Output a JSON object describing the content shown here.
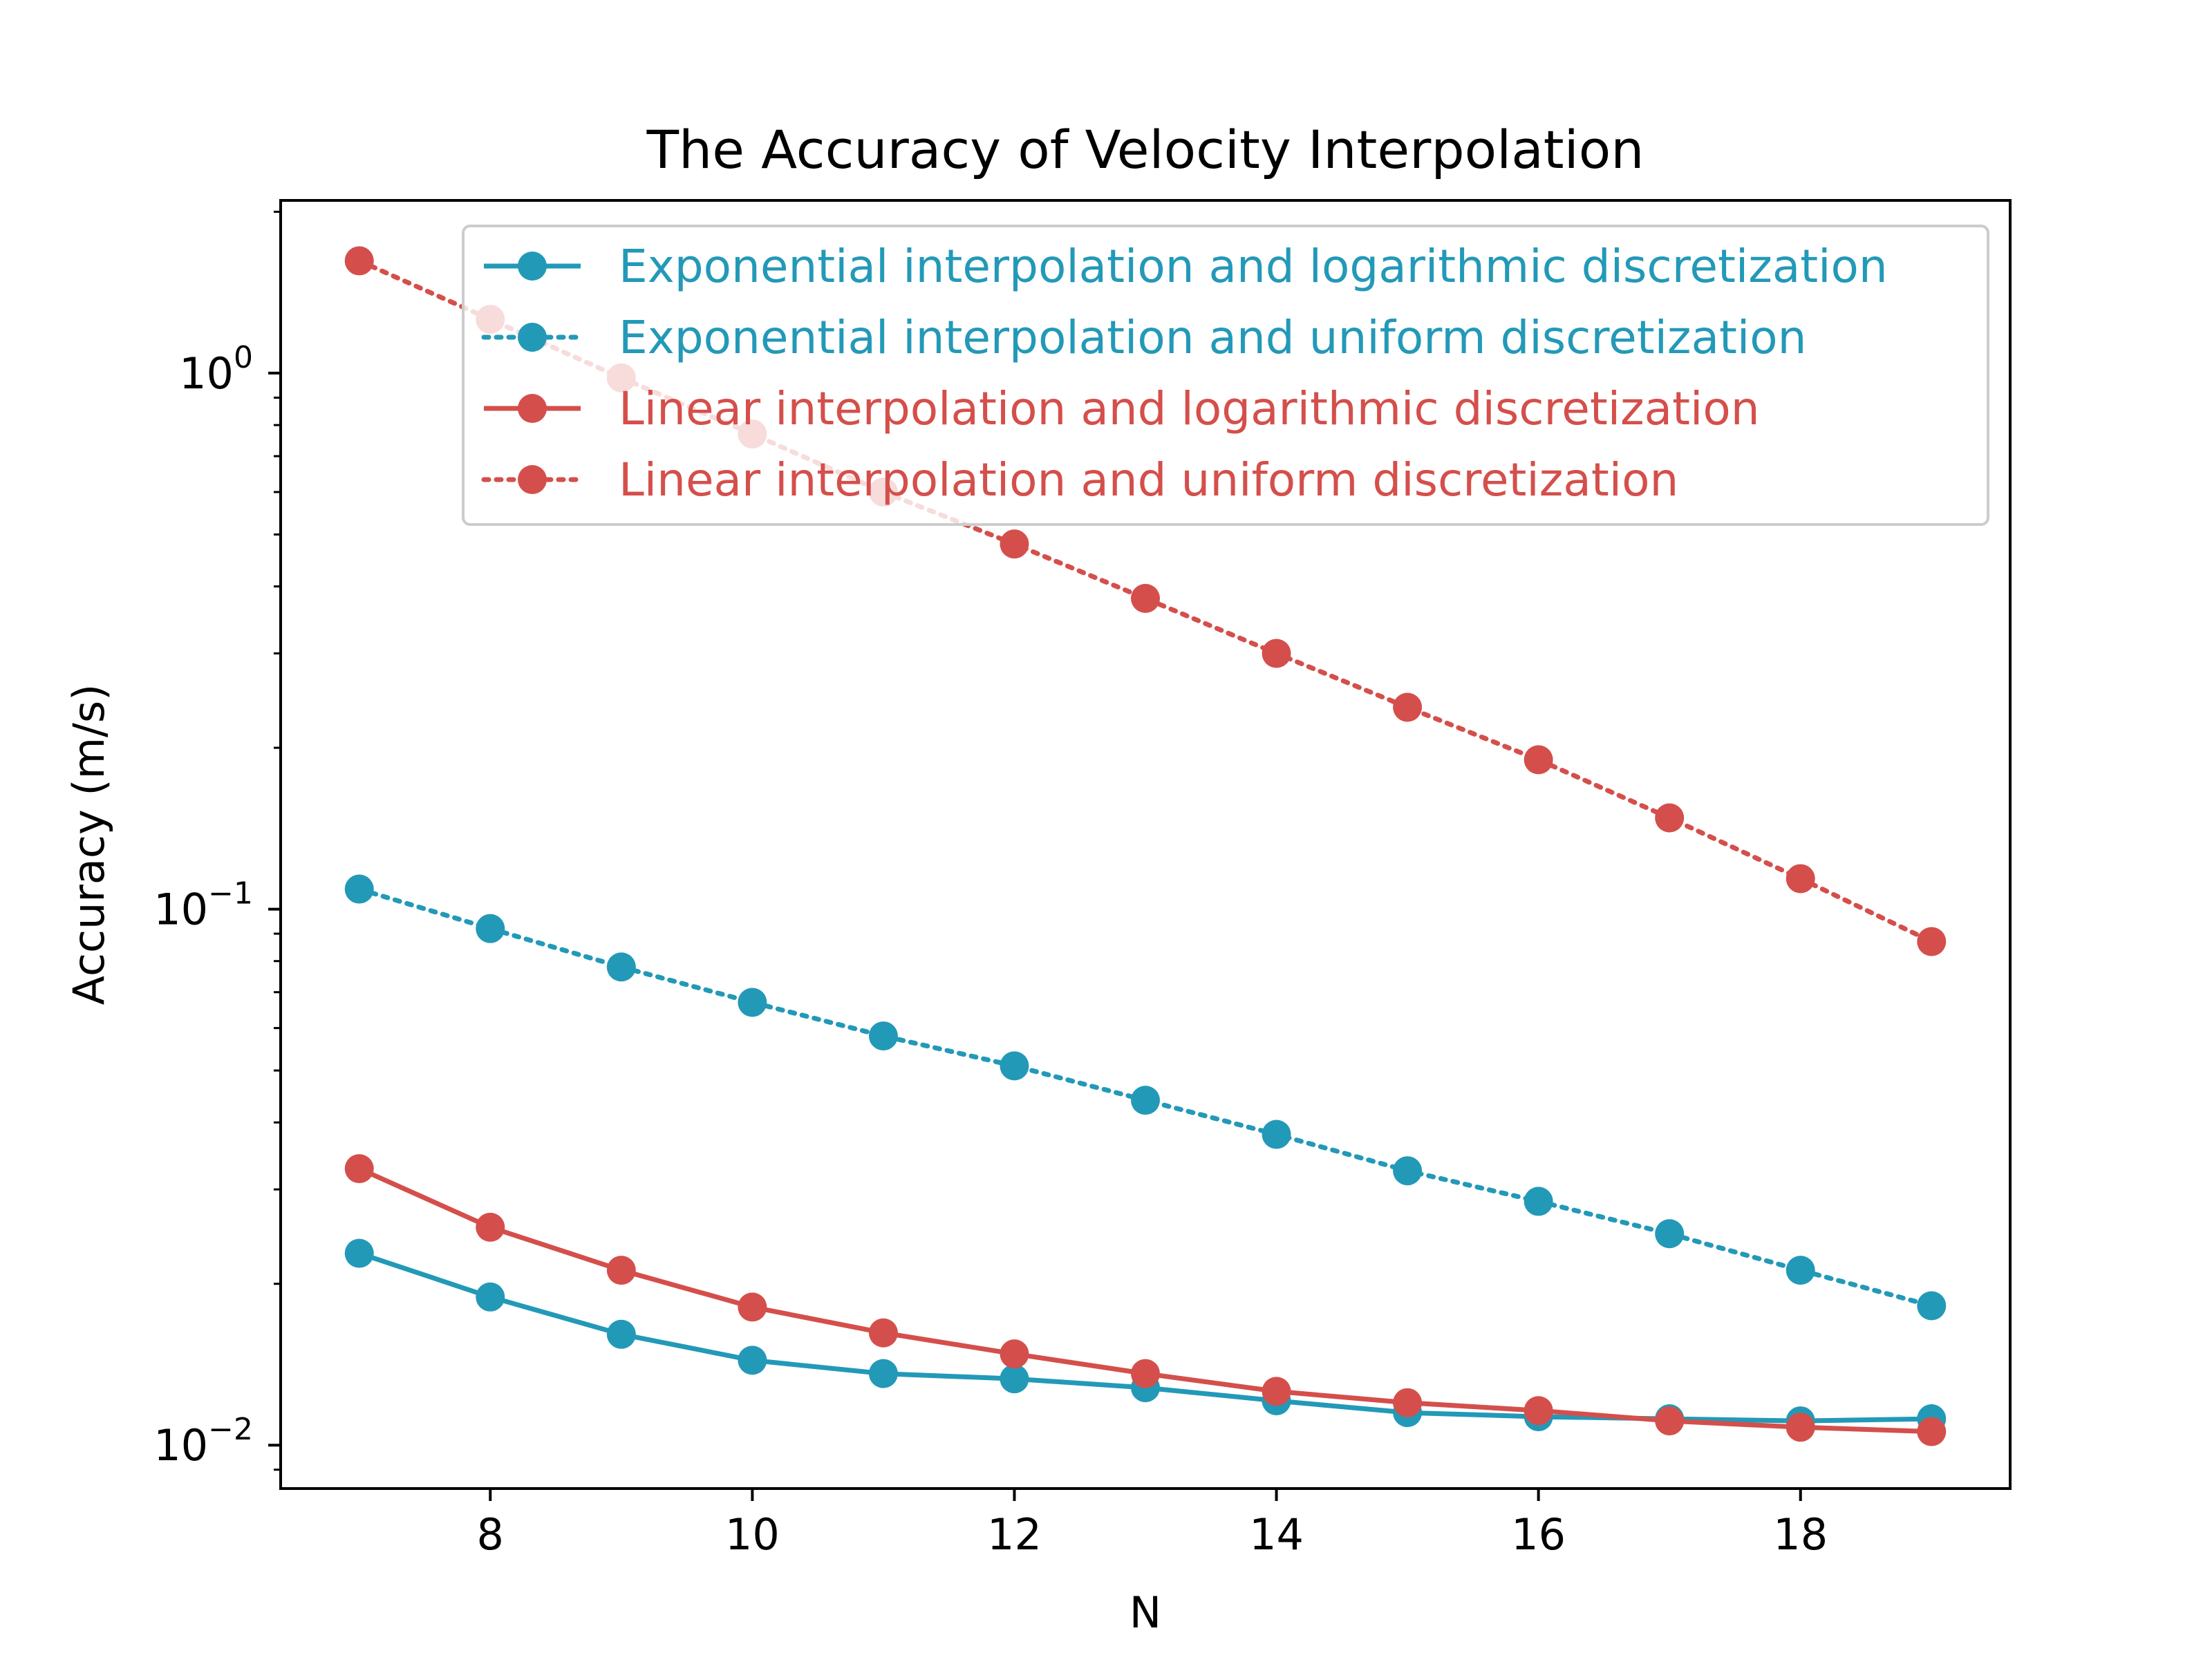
{
  "chart_data": {
    "type": "line",
    "title": "The Accuracy of Velocity Interpolation",
    "xlabel": "N",
    "ylabel": "Accuracy (m/s)",
    "yscale": "log",
    "xlim": [
      6.4,
      19.6
    ],
    "ylim": [
      0.0083,
      2.1
    ],
    "x_ticks": [
      8,
      10,
      12,
      14,
      16,
      18
    ],
    "x_tick_labels": [
      "8",
      "10",
      "12",
      "14",
      "16",
      "18"
    ],
    "y_major_ticks": [
      1,
      0.1,
      0.01
    ],
    "y_tick_labels": [
      {
        "base": "10",
        "exp": "0"
      },
      {
        "base": "10",
        "exp": "−1"
      },
      {
        "base": "10",
        "exp": "−2"
      }
    ],
    "x": [
      7,
      8,
      9,
      10,
      11,
      12,
      13,
      14,
      15,
      16,
      17,
      18,
      19
    ],
    "legend_position": "top-right",
    "series": [
      {
        "name": "Exponential interpolation and logarithmic discretization",
        "color": "#2399b8",
        "style": "solid",
        "values": [
          0.0228,
          0.0189,
          0.0161,
          0.0144,
          0.0136,
          0.0133,
          0.0128,
          0.0121,
          0.0115,
          0.0113,
          0.0112,
          0.0111,
          0.0112
        ]
      },
      {
        "name": "Exponential interpolation and uniform discretization",
        "color": "#2399b8",
        "style": "dotted",
        "values": [
          0.109,
          0.092,
          0.078,
          0.067,
          0.058,
          0.051,
          0.044,
          0.038,
          0.0325,
          0.0285,
          0.0248,
          0.0212,
          0.0182
        ]
      },
      {
        "name": "Linear interpolation and logarithmic discretization",
        "color": "#d44f4b",
        "style": "solid",
        "values": [
          0.0328,
          0.0255,
          0.0212,
          0.0181,
          0.0162,
          0.0148,
          0.0136,
          0.0126,
          0.012,
          0.0116,
          0.0111,
          0.0108,
          0.0106
        ]
      },
      {
        "name": "Linear interpolation and uniform discretization",
        "color": "#d44f4b",
        "style": "dotted",
        "values": [
          1.62,
          1.26,
          0.98,
          0.77,
          0.6,
          0.48,
          0.38,
          0.3,
          0.238,
          0.19,
          0.148,
          0.114,
          0.087
        ]
      }
    ]
  }
}
